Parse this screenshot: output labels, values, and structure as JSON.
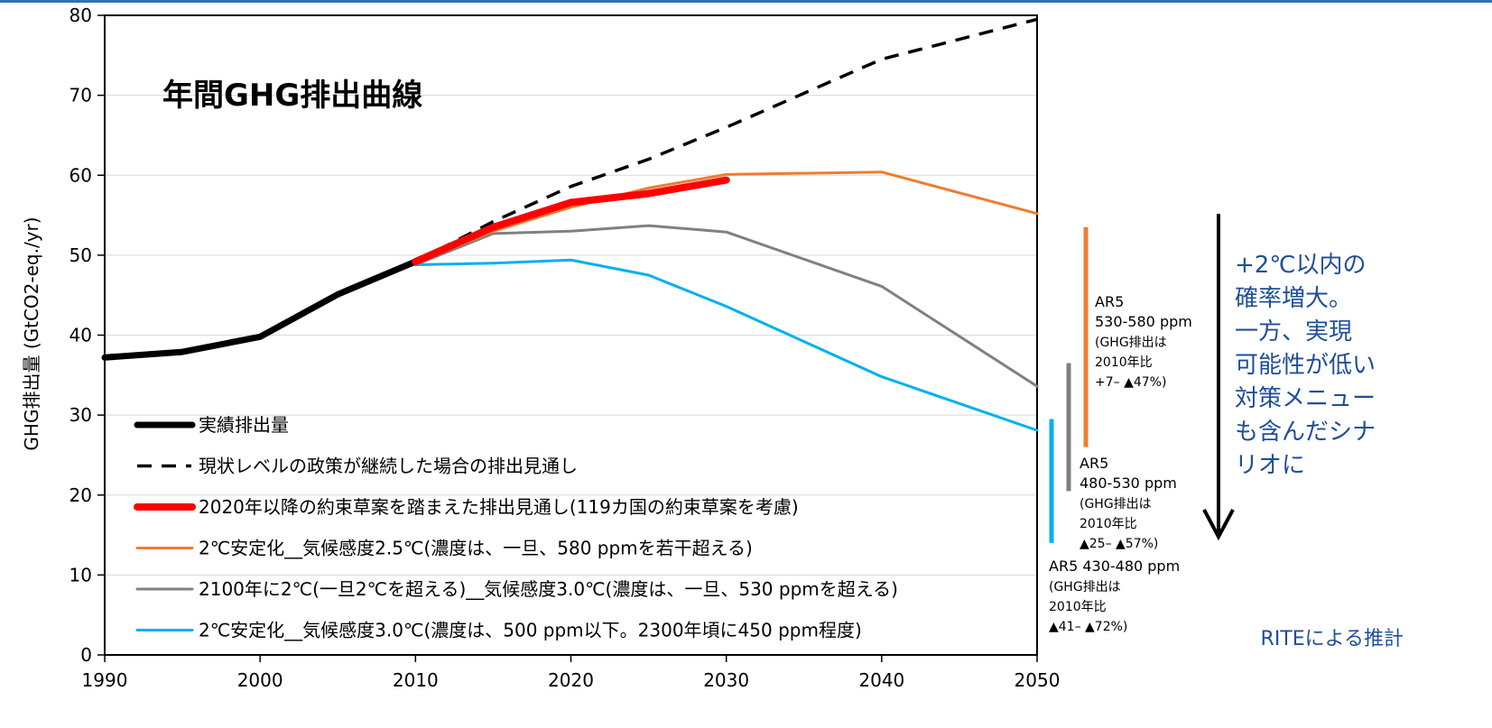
{
  "chart_data": {
    "type": "line",
    "title": "年間GHG排出曲線",
    "ylabel": "GHG排出量 (GtCO2-eq./yr)",
    "xlim": [
      1990,
      2050
    ],
    "ylim": [
      0,
      80
    ],
    "x_ticks": [
      1990,
      2000,
      2010,
      2020,
      2030,
      2040,
      2050
    ],
    "y_ticks": [
      0,
      10,
      20,
      30,
      40,
      50,
      60,
      70,
      80
    ],
    "grid": "horizontal",
    "legend_position": "bottom-left",
    "series": [
      {
        "name": "実績排出量",
        "color": "#000000",
        "style": "solid-thick",
        "x": [
          1990,
          1995,
          2000,
          2005,
          2010
        ],
        "y": [
          37.2,
          37.9,
          39.8,
          45.1,
          49.2
        ]
      },
      {
        "name": "現状レベルの政策が継続した場合の排出見通し",
        "color": "#000000",
        "style": "dashed",
        "x": [
          2010,
          2015,
          2020,
          2025,
          2030,
          2040,
          2050
        ],
        "y": [
          49.2,
          54.2,
          58.6,
          62.0,
          66.0,
          74.5,
          79.5
        ]
      },
      {
        "name": "2020年以降の約束草案を踏まえた排出見通し(119カ国の約束草案を考慮)",
        "color": "#ff0000",
        "style": "solid-thick",
        "x": [
          2010,
          2015,
          2020,
          2025,
          2030
        ],
        "y": [
          49.2,
          53.5,
          56.6,
          57.7,
          59.4
        ]
      },
      {
        "name": "2℃安定化__気候感度2.5℃(濃度は、一旦、580 ppmを若干超える)",
        "color": "#ed7d31",
        "style": "solid",
        "x": [
          2010,
          2015,
          2020,
          2025,
          2030,
          2040,
          2050
        ],
        "y": [
          49.0,
          53.0,
          56.0,
          58.4,
          60.1,
          60.4,
          55.2
        ]
      },
      {
        "name": "2100年に2℃(一旦2℃を超える)__気候感度3.0℃(濃度は、一旦、530 ppmを超える)",
        "color": "#808080",
        "style": "solid",
        "x": [
          2010,
          2015,
          2020,
          2025,
          2030,
          2040,
          2050
        ],
        "y": [
          48.8,
          52.7,
          53.0,
          53.7,
          52.9,
          46.1,
          33.6
        ]
      },
      {
        "name": "2℃安定化__気候感度3.0℃(濃度は、500 ppm以下。2300年頃に450 ppm程度)",
        "color": "#00b0f0",
        "style": "solid",
        "x": [
          2010,
          2015,
          2020,
          2025,
          2030,
          2040,
          2050
        ],
        "y": [
          48.8,
          49.0,
          49.4,
          47.5,
          43.6,
          34.8,
          28.1
        ]
      }
    ],
    "ar5_ranges": [
      {
        "color": "#ed7d31",
        "ymin": 26.0,
        "ymax": 53.5,
        "lines": [
          "AR5",
          "530-580 ppm",
          "(GHG排出は",
          "2010年比",
          "+7– ▲47%)"
        ]
      },
      {
        "color": "#808080",
        "ymin": 20.5,
        "ymax": 36.5,
        "lines": [
          "AR5",
          "480-530 ppm",
          "(GHG排出は",
          "2010年比",
          "▲25– ▲57%)"
        ]
      },
      {
        "color": "#00b0f0",
        "ymin": 14.0,
        "ymax": 29.5,
        "lines": [
          "AR5 430-480 ppm",
          "(GHG排出は",
          "2010年比",
          "▲41– ▲72%)"
        ]
      }
    ],
    "annotation": {
      "lines": [
        "+2℃以内の",
        "確率増大。",
        "一方、実現",
        "可能性が低い",
        "対策メニュー",
        "も含んだシナ",
        "リオに"
      ],
      "arrow_color": "#000000"
    },
    "credit": "RITEによる推計"
  }
}
